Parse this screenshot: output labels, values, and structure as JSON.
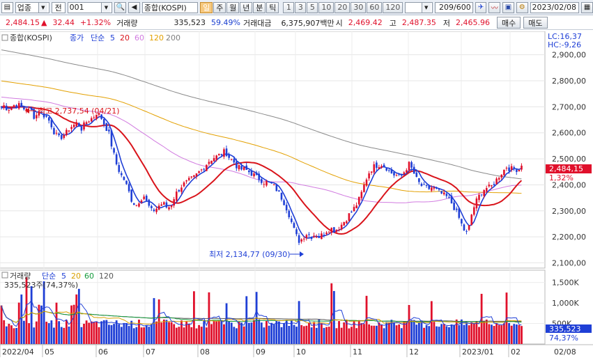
{
  "toolbar": {
    "market": "업종",
    "period_type": "전",
    "code": "001",
    "index_name": "종합(KOSPI)",
    "period_tabs": [
      "일",
      "주",
      "월",
      "년",
      "분",
      "틱"
    ],
    "active_period": "일",
    "intervals": [
      "1",
      "3",
      "5",
      "10",
      "20",
      "30",
      "60",
      "120"
    ],
    "count_display": "209",
    "count_total": "/600",
    "date": "2023/02/08"
  },
  "quote": {
    "price": "2,484.15",
    "change_arrow": "▲",
    "change": "32.44",
    "change_pct": "+1.32%",
    "volume_label": "거래량",
    "volume": "335,523",
    "volume_ratio": "59.49%",
    "amount_label": "거래대금",
    "amount": "6,375,907백만",
    "open_label": "시",
    "open": "2,469.42",
    "high_label": "고",
    "high": "2,487.35",
    "low_label": "저",
    "low": "2,465.96",
    "buy_label": "매수",
    "sell_label": "매도"
  },
  "price_legend": {
    "name": "종합(KOSPI)",
    "close_label": "종가",
    "ma_label": "단순",
    "periods": [
      "5",
      "20",
      "60",
      "120",
      "200"
    ],
    "period_colors": [
      "#1f3fd6",
      "#d9141b",
      "#d17be0",
      "#e3a000",
      "#7f7f7f"
    ]
  },
  "volume_legend": {
    "name": "거래량",
    "ma_label": "단순",
    "periods": [
      "5",
      "20",
      "60",
      "120"
    ],
    "period_colors": [
      "#1f3fd6",
      "#d8a000",
      "#139a3a",
      "#555555"
    ],
    "current": "335,523주(74,37%)"
  },
  "right_panel": {
    "lc": "LC:16,37",
    "hc": "HC:-9,26",
    "last_price": "2,484,15",
    "last_pct": "1,32%",
    "last_volume": "335,523",
    "last_vol_pct": "74,37%"
  },
  "annotations": {
    "high": "최고 2,737,54 (04/21)",
    "low": "최저 2,134,77 (09/30)"
  },
  "chart_data": {
    "type": "candlestick",
    "y_ticks": [
      "2,900,00",
      "2,800,00",
      "2,700,00",
      "2,600,00",
      "2,500,00",
      "2,400,00",
      "2,300,00",
      "2,200,00",
      "2,100,00"
    ],
    "volume_ticks": [
      "1,500K",
      "1,000K",
      "500K"
    ],
    "x_labels": [
      "2022/04",
      "05",
      "06",
      "07",
      "08",
      "09",
      "10",
      "11",
      "12",
      "2023/01",
      "02",
      "02/08"
    ],
    "y_range": [
      2080,
      2990
    ],
    "close_path": [
      [
        0,
        2695
      ],
      [
        6,
        2705
      ],
      [
        11,
        2690
      ],
      [
        17,
        2700
      ],
      [
        22,
        2710
      ],
      [
        28,
        2705
      ],
      [
        33,
        2690
      ],
      [
        39,
        2700
      ],
      [
        45,
        2685
      ],
      [
        50,
        2655
      ],
      [
        56,
        2690
      ],
      [
        61,
        2670
      ],
      [
        67,
        2660
      ],
      [
        72,
        2640
      ],
      [
        78,
        2600
      ],
      [
        84,
        2580
      ],
      [
        89,
        2585
      ],
      [
        95,
        2600
      ],
      [
        100,
        2620
      ],
      [
        106,
        2630
      ],
      [
        111,
        2640
      ],
      [
        117,
        2615
      ],
      [
        123,
        2640
      ],
      [
        128,
        2650
      ],
      [
        134,
        2660
      ],
      [
        139,
        2680
      ],
      [
        145,
        2660
      ],
      [
        150,
        2630
      ],
      [
        156,
        2600
      ],
      [
        161,
        2540
      ],
      [
        167,
        2480
      ],
      [
        173,
        2440
      ],
      [
        178,
        2420
      ],
      [
        184,
        2380
      ],
      [
        189,
        2340
      ],
      [
        195,
        2320
      ],
      [
        200,
        2340
      ],
      [
        206,
        2360
      ],
      [
        211,
        2330
      ],
      [
        217,
        2300
      ],
      [
        223,
        2305
      ],
      [
        228,
        2320
      ],
      [
        234,
        2330
      ],
      [
        240,
        2310
      ],
      [
        245,
        2320
      ],
      [
        251,
        2360
      ],
      [
        256,
        2380
      ],
      [
        262,
        2400
      ],
      [
        268,
        2410
      ],
      [
        273,
        2420
      ],
      [
        279,
        2430
      ],
      [
        284,
        2445
      ],
      [
        290,
        2460
      ],
      [
        296,
        2480
      ],
      [
        301,
        2495
      ],
      [
        307,
        2505
      ],
      [
        312,
        2510
      ],
      [
        318,
        2520
      ],
      [
        323,
        2530
      ],
      [
        329,
        2505
      ],
      [
        335,
        2490
      ],
      [
        340,
        2470
      ],
      [
        346,
        2460
      ],
      [
        351,
        2460
      ],
      [
        357,
        2450
      ],
      [
        363,
        2440
      ],
      [
        368,
        2430
      ],
      [
        374,
        2420
      ],
      [
        379,
        2410
      ],
      [
        385,
        2410
      ],
      [
        391,
        2400
      ],
      [
        396,
        2385
      ],
      [
        402,
        2360
      ],
      [
        407,
        2335
      ],
      [
        413,
        2300
      ],
      [
        419,
        2250
      ],
      [
        424,
        2210
      ],
      [
        430,
        2180
      ],
      [
        435,
        2200
      ],
      [
        441,
        2215
      ],
      [
        446,
        2200
      ],
      [
        452,
        2210
      ],
      [
        458,
        2200
      ],
      [
        463,
        2210
      ],
      [
        469,
        2225
      ],
      [
        474,
        2235
      ],
      [
        480,
        2225
      ],
      [
        486,
        2235
      ],
      [
        491,
        2250
      ],
      [
        497,
        2270
      ],
      [
        502,
        2290
      ],
      [
        508,
        2310
      ],
      [
        513,
        2330
      ],
      [
        519,
        2370
      ],
      [
        525,
        2420
      ],
      [
        530,
        2450
      ],
      [
        536,
        2470
      ],
      [
        541,
        2475
      ],
      [
        547,
        2480
      ],
      [
        553,
        2470
      ],
      [
        558,
        2455
      ],
      [
        564,
        2440
      ],
      [
        570,
        2435
      ],
      [
        575,
        2430
      ],
      [
        581,
        2455
      ],
      [
        587,
        2480
      ],
      [
        592,
        2455
      ],
      [
        598,
        2420
      ],
      [
        603,
        2400
      ],
      [
        609,
        2390
      ],
      [
        615,
        2385
      ],
      [
        620,
        2390
      ],
      [
        626,
        2380
      ],
      [
        631,
        2370
      ],
      [
        637,
        2360
      ],
      [
        643,
        2350
      ],
      [
        648,
        2330
      ],
      [
        654,
        2300
      ],
      [
        659,
        2270
      ],
      [
        665,
        2230
      ],
      [
        671,
        2210
      ],
      [
        676,
        2280
      ],
      [
        682,
        2330
      ],
      [
        687,
        2355
      ],
      [
        693,
        2380
      ],
      [
        699,
        2390
      ],
      [
        704,
        2390
      ],
      [
        710,
        2410
      ],
      [
        715,
        2430
      ],
      [
        721,
        2450
      ],
      [
        727,
        2470
      ],
      [
        732,
        2460
      ],
      [
        738,
        2465
      ],
      [
        744,
        2455
      ],
      [
        749,
        2484
      ]
    ]
  }
}
